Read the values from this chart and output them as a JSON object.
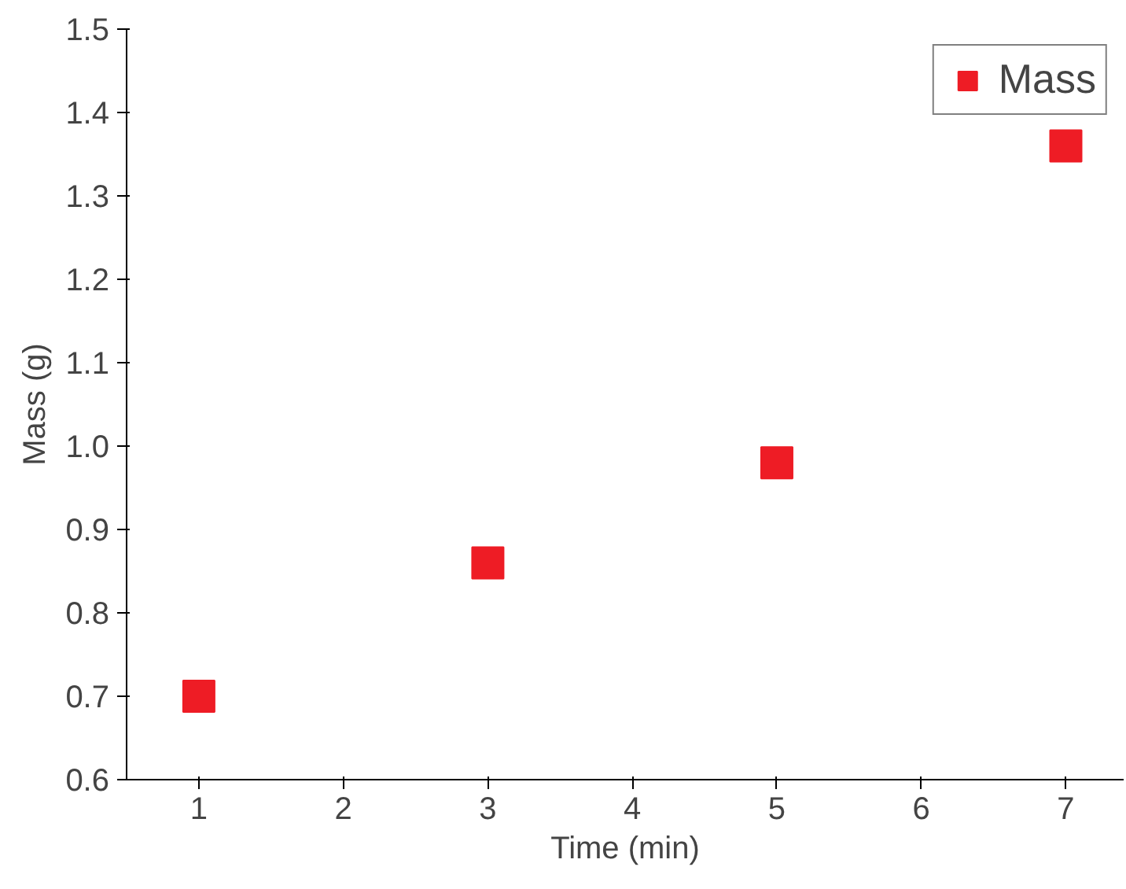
{
  "chart_data": {
    "type": "scatter",
    "xlabel": "Time (min)",
    "ylabel": "Mass (g)",
    "x": [
      1,
      3,
      5,
      7
    ],
    "series": [
      {
        "name": "Mass",
        "color": "#ee1c25",
        "values": [
          0.7,
          0.86,
          0.98,
          1.36
        ]
      }
    ],
    "xlim": [
      0.5,
      7.4
    ],
    "xticks": [
      1,
      2,
      3,
      4,
      5,
      6,
      7
    ],
    "ylim": [
      0.6,
      1.5
    ],
    "yticks": [
      {
        "value": 0.6,
        "label": "0.6"
      },
      {
        "value": 0.7,
        "label": "0.7"
      },
      {
        "value": 0.8,
        "label": "0.8"
      },
      {
        "value": 0.9,
        "label": "0.9"
      },
      {
        "value": 1.0,
        "label": "1.0"
      },
      {
        "value": 1.1,
        "label": "1.1"
      },
      {
        "value": 1.2,
        "label": "1.2"
      },
      {
        "value": 1.3,
        "label": "1.3"
      },
      {
        "value": 1.4,
        "label": "1.4"
      },
      {
        "value": 1.5,
        "label": "1.5"
      }
    ],
    "grid": false,
    "legend": "top right",
    "marker": "square"
  }
}
